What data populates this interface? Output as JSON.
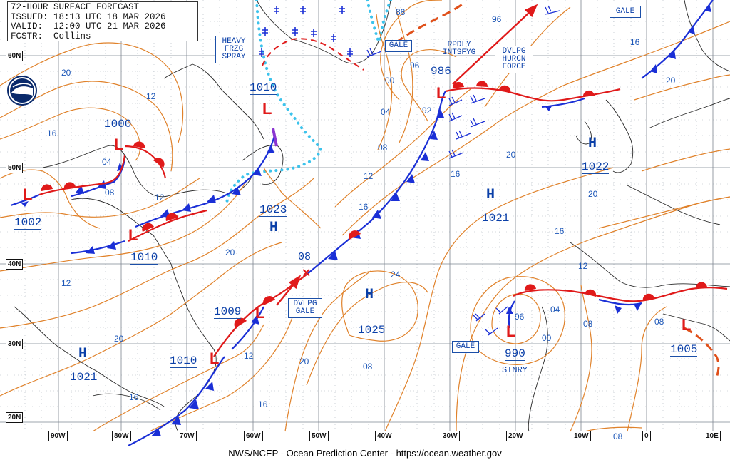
{
  "header": {
    "title": "72-HOUR SURFACE FORECAST",
    "issued": "ISSUED: 18:13 UTC 18 MAR 2026",
    "valid": "VALID:  12:00 UTC 21 MAR 2026",
    "forecaster": "FCSTR:  Collins"
  },
  "footer": "NWS/NCEP - Ocean Prediction Center - https://ocean.weather.gov",
  "axes": {
    "longitudes": [
      "90W",
      "80W",
      "70W",
      "60W",
      "50W",
      "40W",
      "30W",
      "20W",
      "10W",
      "0",
      "10E"
    ],
    "latitudes": [
      "60N",
      "50N",
      "40N",
      "30N",
      "20N"
    ]
  },
  "centers": {
    "highs": [
      {
        "symbol": "H",
        "pressure": "1021"
      },
      {
        "symbol": "H",
        "pressure": "1023"
      },
      {
        "symbol": "H",
        "pressure": "1025"
      },
      {
        "symbol": "H",
        "pressure": "1021"
      },
      {
        "symbol": "H",
        "pressure": "1022"
      }
    ],
    "lows": [
      {
        "symbol": "L",
        "pressure": "1002"
      },
      {
        "symbol": "L",
        "pressure": "1000"
      },
      {
        "symbol": "L",
        "pressure": "1010"
      },
      {
        "symbol": "L",
        "pressure": "1010"
      },
      {
        "symbol": "L",
        "pressure": "1009"
      },
      {
        "symbol": "L",
        "pressure": "1010"
      },
      {
        "symbol": "L",
        "pressure": "986"
      },
      {
        "symbol": "L",
        "pressure": "990"
      },
      {
        "symbol": "L",
        "pressure": "1005"
      }
    ]
  },
  "isobar_labels": [
    "20",
    "16",
    "12",
    "04",
    "08",
    "12",
    "20",
    "16",
    "12",
    "20",
    "16",
    "08",
    "24",
    "20",
    "16",
    "00",
    "04",
    "08",
    "12",
    "16",
    "20",
    "92",
    "96",
    "88",
    "96",
    "16",
    "20",
    "20",
    "16",
    "12",
    "08",
    "04",
    "00",
    "96",
    "08",
    "08",
    "12"
  ],
  "text_boxes": {
    "heavy_spray": [
      "HEAVY",
      "FRZG",
      "SPRAY"
    ],
    "gale_top": "GALE",
    "gale_ne": "GALE",
    "rpdly": [
      "RPDLY",
      "INTSFYG"
    ],
    "dvlpg_hurcn": [
      "DVLPG",
      "HURCN",
      "FORCE"
    ],
    "dvlpg_gale": [
      "DVLPG",
      "GALE"
    ],
    "gale_sw": "GALE",
    "stnry": "STNRY"
  },
  "misc_labels": {
    "x_08": "08"
  },
  "colors": {
    "isobar": "#e0822b",
    "cold_front": "#1a2fd6",
    "warm_front": "#e01a1a",
    "ice": "#3cc3ec",
    "grid": "#9aa3ad",
    "coast": "#222222",
    "label": "#0a3fa8"
  }
}
